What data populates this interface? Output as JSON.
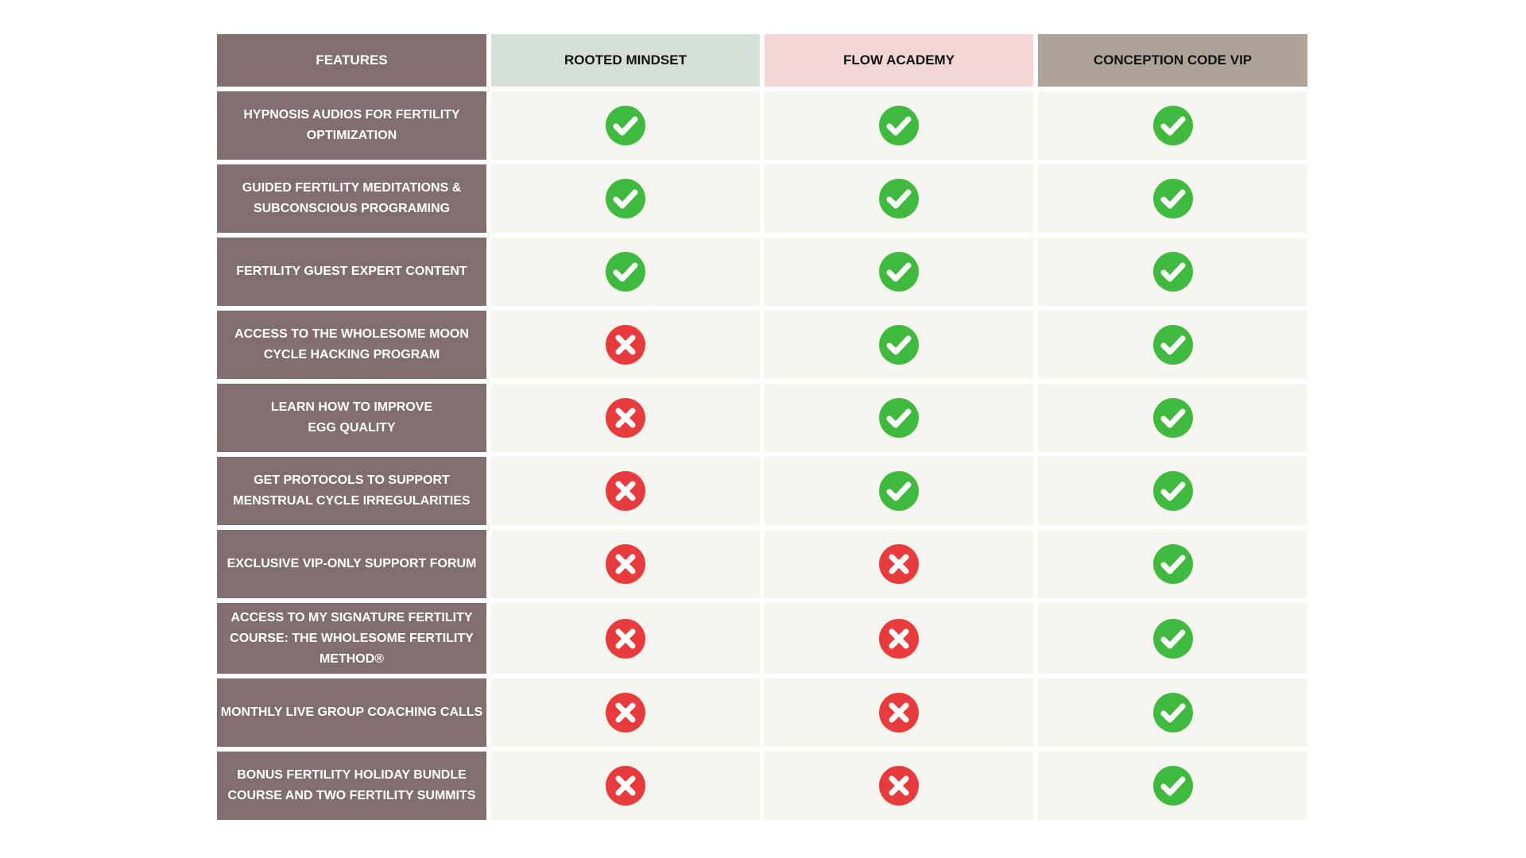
{
  "table": {
    "headers": [
      "FEATURES",
      "ROOTED MINDSET",
      "FLOW ACADEMY",
      "CONCEPTION CODE VIP"
    ],
    "rows": [
      {
        "feature": "HYPNOSIS AUDIOS FOR FERTILITY OPTIMIZATION",
        "included": [
          true,
          true,
          true
        ]
      },
      {
        "feature": "GUIDED FERTILITY MEDITATIONS & SUBCONSCIOUS PROGRAMING",
        "included": [
          true,
          true,
          true
        ]
      },
      {
        "feature": "FERTILITY GUEST EXPERT CONTENT",
        "included": [
          true,
          true,
          true
        ]
      },
      {
        "feature": "ACCESS TO THE WHOLESOME MOON CYCLE HACKING PROGRAM",
        "included": [
          false,
          true,
          true
        ]
      },
      {
        "feature": "LEARN HOW TO IMPROVE\nEGG QUALITY",
        "included": [
          false,
          true,
          true
        ]
      },
      {
        "feature": "GET PROTOCOLS TO SUPPORT MENSTRUAL CYCLE IRREGULARITIES",
        "included": [
          false,
          true,
          true
        ]
      },
      {
        "feature": "EXCLUSIVE VIP-ONLY SUPPORT FORUM",
        "included": [
          false,
          false,
          true
        ]
      },
      {
        "feature": "ACCESS TO MY SIGNATURE FERTILITY COURSE: THE WHOLESOME FERTILITY METHOD®",
        "included": [
          false,
          false,
          true
        ]
      },
      {
        "feature": "MONTHLY LIVE GROUP COACHING CALLS",
        "included": [
          false,
          false,
          true
        ]
      },
      {
        "feature": "BONUS FERTILITY HOLIDAY BUNDLE COURSE AND TWO FERTILITY SUMMITS",
        "included": [
          false,
          false,
          true
        ]
      }
    ]
  }
}
